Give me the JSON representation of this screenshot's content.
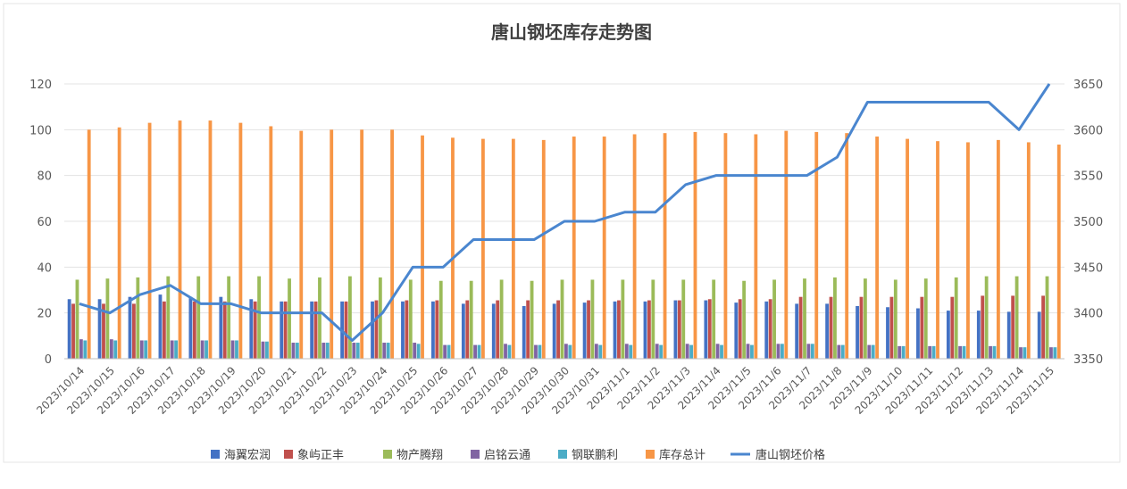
{
  "chart_data": {
    "type": "bar",
    "title": "唐山钢坯库存走势图",
    "categories": [
      "2023/10/14",
      "2023/10/15",
      "2023/10/16",
      "2023/10/17",
      "2023/10/18",
      "2023/10/19",
      "2023/10/20",
      "2023/10/21",
      "2023/10/22",
      "2023/10/23",
      "2023/10/24",
      "2023/10/25",
      "2023/10/26",
      "2023/10/27",
      "2023/10/28",
      "2023/10/29",
      "2023/10/30",
      "2023/10/31",
      "2023/11/1",
      "2023/11/2",
      "2023/11/3",
      "2023/11/4",
      "2023/11/5",
      "2023/11/6",
      "2023/11/7",
      "2023/11/8",
      "2023/11/9",
      "2023/11/10",
      "2023/11/11",
      "2023/11/12",
      "2023/11/13",
      "2023/11/14",
      "2023/11/15"
    ],
    "y_left": {
      "min": 0,
      "max": 120,
      "ticks": [
        0,
        20,
        40,
        60,
        80,
        100,
        120
      ]
    },
    "y_right": {
      "min": 3350,
      "max": 3650,
      "ticks": [
        3350,
        3400,
        3450,
        3500,
        3550,
        3600,
        3650
      ]
    },
    "series": [
      {
        "name": "海翼宏润",
        "color": "#4472C4",
        "type": "bar",
        "axis": "left",
        "values": [
          26,
          26,
          27,
          28,
          27,
          27,
          26,
          25,
          25,
          25,
          25,
          25,
          25,
          24,
          24,
          23,
          24,
          24.5,
          25,
          25,
          25.5,
          25.5,
          24.5,
          25,
          24,
          24,
          23,
          22.5,
          22,
          21,
          21,
          20.5,
          20.5
        ]
      },
      {
        "name": "象屿正丰",
        "color": "#C0504D",
        "type": "bar",
        "axis": "left",
        "values": [
          24,
          24,
          24,
          25,
          25,
          25,
          25,
          25,
          25,
          25,
          25.5,
          25.5,
          25.5,
          25.5,
          25.5,
          25.5,
          25.5,
          25.5,
          25.5,
          25.5,
          25.5,
          26,
          26,
          26,
          27,
          27,
          27,
          27,
          27,
          27,
          27.5,
          27.5,
          27.5
        ]
      },
      {
        "name": "物产腾翔",
        "color": "#9BBB59",
        "type": "bar",
        "axis": "left",
        "values": [
          34.5,
          35,
          35.5,
          36,
          36,
          36,
          36,
          35,
          35.5,
          36,
          35.5,
          34.5,
          34,
          34,
          34.5,
          34,
          34.5,
          34.5,
          34.5,
          34.5,
          34.5,
          34.5,
          34,
          34.5,
          35,
          35.5,
          35,
          34.5,
          35,
          35.5,
          36,
          36,
          36
        ]
      },
      {
        "name": "启铭云通",
        "color": "#8064A2",
        "type": "bar",
        "axis": "left",
        "values": [
          8.5,
          8.5,
          8,
          8,
          8,
          8,
          7.5,
          7,
          7,
          7,
          7,
          7,
          6,
          6,
          6.5,
          6,
          6.5,
          6.5,
          6.5,
          6.5,
          6.5,
          6.5,
          6.5,
          6.5,
          6.5,
          6,
          6,
          5.5,
          5.5,
          5.5,
          5.5,
          5,
          5
        ]
      },
      {
        "name": "钢联鹏利",
        "color": "#4BACC6",
        "type": "bar",
        "axis": "left",
        "values": [
          8,
          8,
          8,
          8,
          8,
          8,
          7.5,
          7,
          7,
          7,
          7,
          6.5,
          6,
          6,
          6,
          6,
          6,
          6,
          6,
          6,
          6,
          6,
          6,
          6.5,
          6.5,
          6,
          6,
          5.5,
          5.5,
          5.5,
          5.5,
          5,
          5
        ]
      },
      {
        "name": "库存总计",
        "color": "#F79646",
        "type": "bar",
        "axis": "left",
        "values": [
          100,
          101,
          103,
          104,
          104,
          103,
          101.5,
          99.5,
          100,
          100,
          100,
          97.5,
          96.5,
          96,
          96,
          95.5,
          97,
          97,
          98,
          98.5,
          99,
          98.5,
          98,
          99.5,
          99,
          98.5,
          97,
          96,
          95,
          94.5,
          95.5,
          94.5,
          93.5
        ]
      },
      {
        "name": "唐山钢坯价格",
        "color": "#4A86CF",
        "type": "line",
        "axis": "right",
        "values": [
          3410,
          3400,
          3420,
          3430,
          3410,
          3410,
          3400,
          3400,
          3400,
          3370,
          3400,
          3450,
          3450,
          3480,
          3480,
          3480,
          3500,
          3500,
          3510,
          3510,
          3540,
          3550,
          3550,
          3550,
          3550,
          3570,
          3630,
          3630,
          3630,
          3630,
          3630,
          3600,
          3650
        ]
      }
    ]
  }
}
